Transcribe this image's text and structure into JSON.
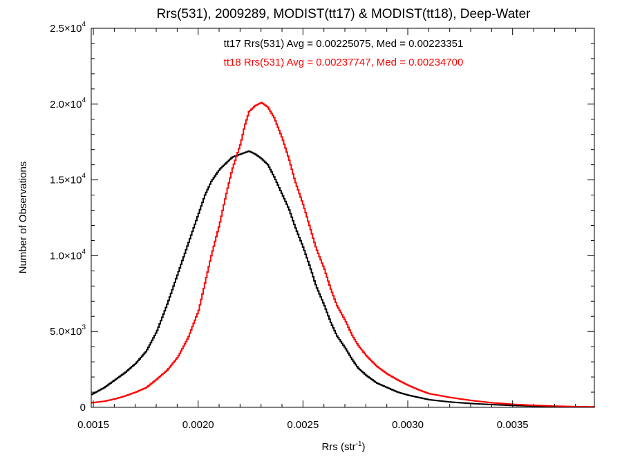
{
  "chart_data": {
    "type": "line",
    "title": "Rrs(531), 2009289, MODIST(tt17) & MODIST(tt18), Deep-Water",
    "xlabel": {
      "main": "Rrs (str",
      "sup": "-1",
      "end": ")"
    },
    "ylabel": "Number of Observations",
    "xlim": [
      0.00149,
      0.00389
    ],
    "ylim": [
      0,
      25000
    ],
    "x_ticks": [
      {
        "value": 0.0015,
        "label": "0.0015"
      },
      {
        "value": 0.002,
        "label": "0.0020"
      },
      {
        "value": 0.0025,
        "label": "0.0025"
      },
      {
        "value": 0.003,
        "label": "0.0030"
      },
      {
        "value": 0.0035,
        "label": "0.0035"
      }
    ],
    "y_ticks": [
      {
        "value": 0,
        "mant": "0",
        "exp": ""
      },
      {
        "value": 5000,
        "mant": "5.0×10",
        "exp": "3"
      },
      {
        "value": 10000,
        "mant": "1.0×10",
        "exp": "4"
      },
      {
        "value": 15000,
        "mant": "1.5×10",
        "exp": "4"
      },
      {
        "value": 20000,
        "mant": "2.0×10",
        "exp": "4"
      },
      {
        "value": 25000,
        "mant": "2.5×10",
        "exp": "4"
      }
    ],
    "annotations": [
      "tt17 Rrs(531) Avg = 0.00225075, Med = 0.00223351",
      "tt18 Rrs(531) Avg = 0.00237747, Med = 0.00234700"
    ],
    "series": [
      {
        "color": "#000000",
        "x": [
          0.00149,
          0.00155,
          0.0016,
          0.00165,
          0.0017,
          0.00175,
          0.0018,
          0.00185,
          0.0019,
          0.00195,
          0.002,
          0.00203,
          0.00206,
          0.0021,
          0.00213,
          0.00216,
          0.0022,
          0.00222,
          0.00224,
          0.00227,
          0.0023,
          0.00233,
          0.00236,
          0.0024,
          0.00243,
          0.00246,
          0.0025,
          0.00253,
          0.00256,
          0.0026,
          0.00263,
          0.00266,
          0.0027,
          0.00273,
          0.00276,
          0.0028,
          0.00285,
          0.0029,
          0.00295,
          0.003,
          0.00305,
          0.0031,
          0.0032,
          0.0033,
          0.0034,
          0.0035,
          0.0036,
          0.0037,
          0.0038,
          0.00389
        ],
        "y": [
          850,
          1300,
          1800,
          2300,
          2900,
          3700,
          5000,
          6800,
          8800,
          10800,
          12800,
          14000,
          14900,
          15700,
          16100,
          16500,
          16700,
          16800,
          16900,
          16700,
          16400,
          16000,
          15200,
          14000,
          13100,
          11900,
          10500,
          9300,
          8000,
          6700,
          5600,
          4700,
          3900,
          3200,
          2600,
          2100,
          1600,
          1300,
          1000,
          800,
          650,
          500,
          350,
          250,
          180,
          120,
          80,
          50,
          30,
          20
        ]
      },
      {
        "color": "#ff0000",
        "x": [
          0.00149,
          0.00155,
          0.0016,
          0.00165,
          0.0017,
          0.00175,
          0.0018,
          0.00185,
          0.0019,
          0.00195,
          0.002,
          0.00203,
          0.00206,
          0.0021,
          0.00213,
          0.00216,
          0.0022,
          0.00222,
          0.00224,
          0.00227,
          0.0023,
          0.00233,
          0.00236,
          0.0024,
          0.00243,
          0.00246,
          0.0025,
          0.00253,
          0.00256,
          0.0026,
          0.00263,
          0.00266,
          0.0027,
          0.00273,
          0.00276,
          0.0028,
          0.00285,
          0.0029,
          0.00295,
          0.003,
          0.00305,
          0.0031,
          0.0032,
          0.0033,
          0.0034,
          0.0035,
          0.0036,
          0.0037,
          0.0038,
          0.00389
        ],
        "y": [
          300,
          400,
          550,
          750,
          1000,
          1300,
          1850,
          2450,
          3300,
          4600,
          6400,
          8200,
          10000,
          12100,
          14000,
          15700,
          17400,
          18600,
          19500,
          19900,
          20100,
          19800,
          19100,
          17700,
          16400,
          14900,
          13300,
          11900,
          10500,
          9100,
          7800,
          6700,
          5700,
          4800,
          4100,
          3400,
          2700,
          2200,
          1800,
          1450,
          1150,
          900,
          650,
          450,
          300,
          200,
          130,
          80,
          50,
          30
        ]
      }
    ]
  }
}
